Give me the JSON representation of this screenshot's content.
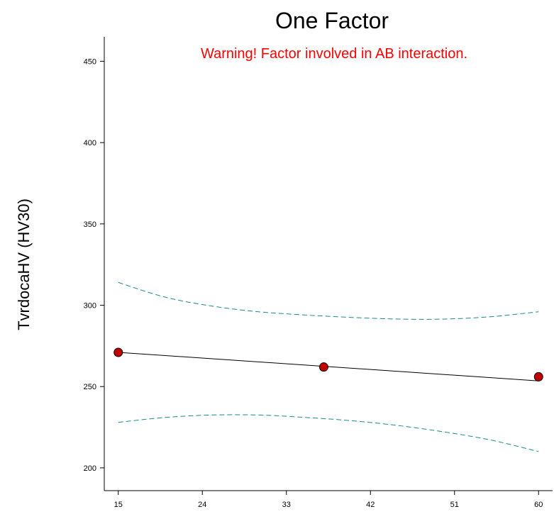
{
  "chart_data": {
    "type": "line",
    "title": "One Factor",
    "ylabel": "TvrdocaHV (HV30)",
    "xlabel": "",
    "warning": "Warning! Factor involved in AB interaction.",
    "xlim": [
      13.5,
      61.5
    ],
    "ylim": [
      186,
      465
    ],
    "x_ticks": [
      15,
      24,
      33,
      42,
      51,
      60
    ],
    "y_ticks": [
      200,
      250,
      300,
      350,
      400,
      450
    ],
    "grid": false,
    "colors": {
      "prediction": "#000000",
      "interval": "#1a8a8a",
      "points": "#c00000",
      "warning": "#ff0000"
    },
    "series": [
      {
        "type": "line",
        "x": [
          15,
          60
        ],
        "y": [
          271,
          253.5
        ]
      },
      {
        "type": "dashed",
        "x": [
          15,
          20,
          25,
          30,
          35,
          40,
          45,
          50,
          55,
          60
        ],
        "y": [
          314,
          305,
          299.5,
          296,
          294,
          292.5,
          291.5,
          291.5,
          293,
          296
        ]
      },
      {
        "type": "dashed",
        "x": [
          15,
          20,
          25,
          30,
          35,
          40,
          45,
          50,
          55,
          60
        ],
        "y": [
          228,
          231,
          232.5,
          232.5,
          231,
          229,
          226,
          222,
          217,
          210
        ]
      },
      {
        "type": "points",
        "x": [
          15,
          37,
          60
        ],
        "y": [
          271,
          262,
          256
        ]
      }
    ]
  }
}
